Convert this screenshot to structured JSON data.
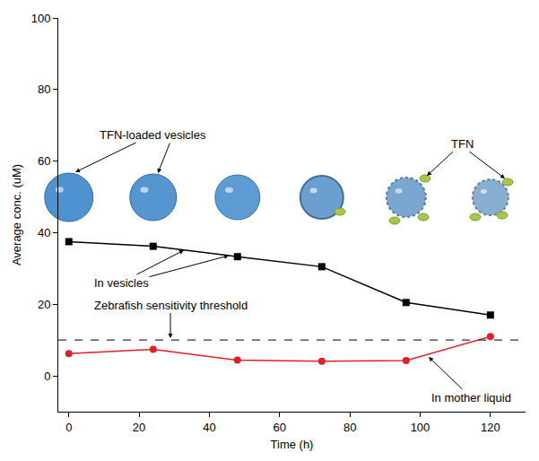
{
  "chart_data": {
    "type": "line",
    "x": [
      0,
      24,
      48,
      72,
      96,
      120
    ],
    "series": [
      {
        "name": "In vesicles",
        "color": "#000000",
        "marker": "square",
        "values": [
          37.5,
          36.2,
          33.3,
          30.5,
          20.5,
          17.0
        ]
      },
      {
        "name": "In mother liquid",
        "color": "#e41e25",
        "marker": "circle",
        "values": [
          6.2,
          7.4,
          4.4,
          4.1,
          4.3,
          11.0
        ]
      }
    ],
    "threshold": {
      "label": "Zebrafish sensitivity threshold",
      "value": 10,
      "line_style": "dashed",
      "color": "#333333"
    },
    "annotations": [
      "TFN-loaded vesicles",
      "TFN"
    ],
    "xlabel": "Time (h)",
    "ylabel": "Average conc. (uM)",
    "xlim": [
      -3,
      130
    ],
    "ylim": [
      -10,
      100
    ],
    "xticks": [
      0,
      20,
      40,
      60,
      80,
      100,
      120
    ],
    "yticks": [
      0,
      20,
      40,
      60,
      80,
      100
    ],
    "grid": false
  }
}
